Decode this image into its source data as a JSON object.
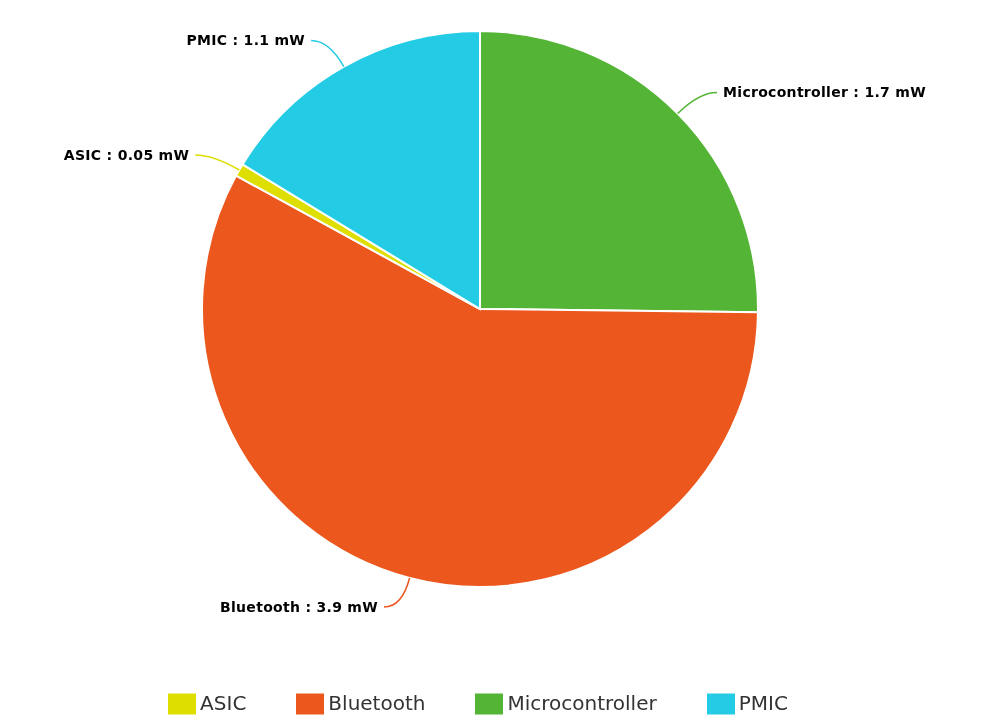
{
  "chart_data": {
    "type": "pie",
    "categories": [
      "Microcontroller",
      "Bluetooth",
      "ASIC",
      "PMIC"
    ],
    "values": [
      1.7,
      3.9,
      0.05,
      1.1
    ],
    "colors": [
      "#54b435",
      "#eb571d",
      "#dede00",
      "#24cbe5"
    ],
    "value_labels": [
      "Microcontroller : 1.7 mW",
      "Bluetooth : 3.9 mW",
      "ASIC : 0.05 mW",
      "PMIC : 1.1 mW"
    ],
    "legend": "bottom"
  }
}
